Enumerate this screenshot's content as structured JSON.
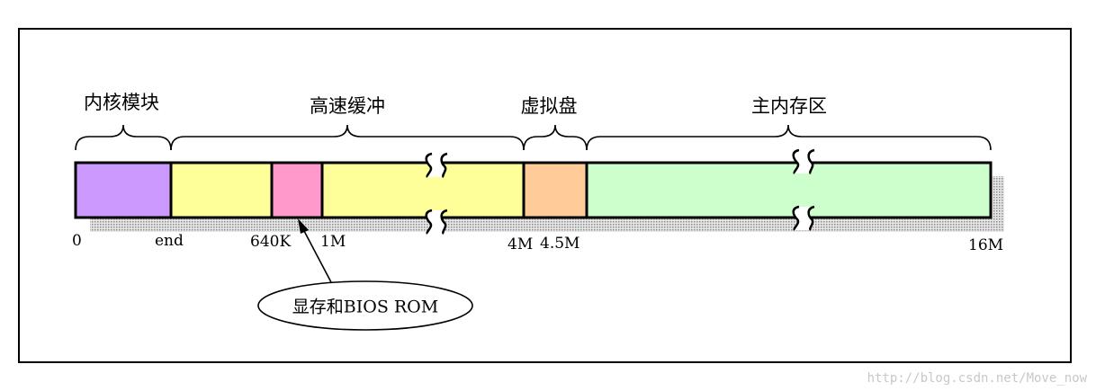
{
  "diagram": {
    "region_labels": {
      "kernel": "内核模块",
      "buffer": "高速缓冲",
      "ramdisk": "虚拟盘",
      "main": "主内存区"
    },
    "address_labels": {
      "zero": "0",
      "end": "end",
      "k640": "640K",
      "m1": "1M",
      "m4": "4M",
      "m4_5": "4.5M",
      "m16": "16M"
    },
    "callout": "显存和BIOS ROM",
    "colors": {
      "kernel": "#cc99ff",
      "buffer": "#ffff99",
      "video_bios": "#ff99cc",
      "ramdisk": "#ffcc99",
      "main": "#ccffcc",
      "shadow": "#b0b0b0"
    }
  },
  "watermark": "http://blog.csdn.net/Move_now"
}
